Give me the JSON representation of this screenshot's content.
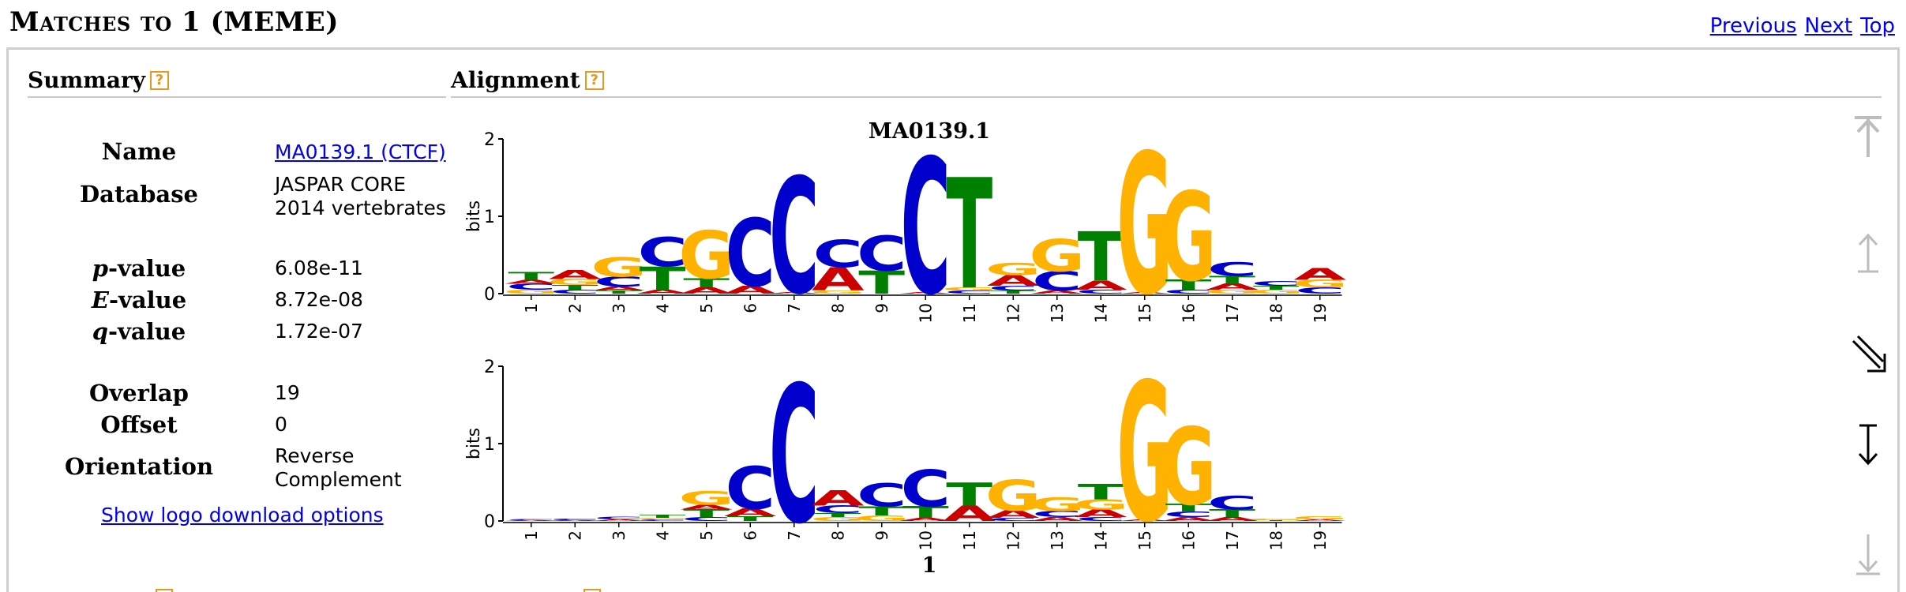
{
  "header": {
    "title": "Matches to 1 (MEME)",
    "nav": {
      "previous": "Previous",
      "next": "Next",
      "top": "Top"
    }
  },
  "summary": {
    "heading": "Summary",
    "help": "?",
    "name_label": "Name",
    "name_value": "MA0139.1 (CTCF)",
    "database_label": "Database",
    "database_line1": "JASPAR CORE",
    "database_line2": "2014 vertebrates",
    "pvalue_label_italic": "p",
    "pvalue_label_rest": "-value",
    "pvalue": "6.08e-11",
    "evalue_label_italic": "E",
    "evalue_label_rest": "-value",
    "evalue": "8.72e-08",
    "qvalue_label_italic": "q",
    "qvalue_label_rest": "-value",
    "qvalue": "1.72e-07",
    "overlap_label": "Overlap",
    "overlap": "19",
    "offset_label": "Offset",
    "offset": "0",
    "orientation_label": "Orientation",
    "orientation_line1": "Reverse",
    "orientation_line2": "Complement",
    "download_link": "Show logo download options"
  },
  "alignment": {
    "heading": "Alignment",
    "help": "?",
    "top_logo_title": "MA0139.1",
    "bottom_logo_title": "1",
    "y_axis_label": "bits",
    "y_ticks": [
      "0",
      "1",
      "2"
    ],
    "positions": [
      "1",
      "2",
      "3",
      "4",
      "5",
      "6",
      "7",
      "8",
      "9",
      "10",
      "11",
      "12",
      "13",
      "14",
      "15",
      "16",
      "17",
      "18",
      "19"
    ]
  },
  "colors": {
    "A": "#cc0000",
    "C": "#0000cc",
    "G": "#ffb300",
    "T": "#008000",
    "link": "#0000ee",
    "help": "#e39a22"
  },
  "logos": {
    "top": [
      [
        [
          "G",
          0.05
        ],
        [
          "C",
          0.08
        ],
        [
          "A",
          0.05
        ],
        [
          "T",
          0.1
        ]
      ],
      [
        [
          "C",
          0.05
        ],
        [
          "T",
          0.06
        ],
        [
          "G",
          0.08
        ],
        [
          "A",
          0.12
        ]
      ],
      [
        [
          "T",
          0.04
        ],
        [
          "A",
          0.05
        ],
        [
          "C",
          0.13
        ],
        [
          "G",
          0.25
        ]
      ],
      [
        [
          "A",
          0.05
        ],
        [
          "T",
          0.3
        ],
        [
          "C",
          0.38
        ]
      ],
      [
        [
          "A",
          0.08
        ],
        [
          "T",
          0.12
        ],
        [
          "G",
          0.62
        ]
      ],
      [
        [
          "A",
          0.1
        ],
        [
          "C",
          0.88
        ]
      ],
      [
        [
          "A",
          0.02
        ],
        [
          "C",
          1.5
        ]
      ],
      [
        [
          "G",
          0.04
        ],
        [
          "A",
          0.3
        ],
        [
          "C",
          0.35
        ]
      ],
      [
        [
          "T",
          0.3
        ],
        [
          "C",
          0.45
        ]
      ],
      [
        [
          "A",
          0.02
        ],
        [
          "C",
          1.75
        ]
      ],
      [
        [
          "C",
          0.04
        ],
        [
          "G",
          0.04
        ],
        [
          "T",
          1.43
        ]
      ],
      [
        [
          "T",
          0.04
        ],
        [
          "C",
          0.06
        ],
        [
          "A",
          0.14
        ],
        [
          "G",
          0.16
        ]
      ],
      [
        [
          "A",
          0.04
        ],
        [
          "C",
          0.25
        ],
        [
          "G",
          0.42
        ]
      ],
      [
        [
          "C",
          0.05
        ],
        [
          "A",
          0.12
        ],
        [
          "T",
          0.64
        ]
      ],
      [
        [
          "A",
          0.02
        ],
        [
          "G",
          1.82
        ]
      ],
      [
        [
          "C",
          0.05
        ],
        [
          "T",
          0.13
        ],
        [
          "G",
          1.15
        ]
      ],
      [
        [
          "G",
          0.05
        ],
        [
          "A",
          0.08
        ],
        [
          "T",
          0.1
        ],
        [
          "C",
          0.18
        ]
      ],
      [
        [
          "G",
          0.05
        ],
        [
          "T",
          0.05
        ],
        [
          "C",
          0.06
        ]
      ],
      [
        [
          "C",
          0.08
        ],
        [
          "G",
          0.1
        ],
        [
          "A",
          0.15
        ]
      ]
    ],
    "bottom": [
      [
        [
          "A",
          0.01
        ],
        [
          "C",
          0.01
        ]
      ],
      [
        [
          "A",
          0.01
        ],
        [
          "C",
          0.02
        ]
      ],
      [
        [
          "A",
          0.02
        ],
        [
          "C",
          0.03
        ]
      ],
      [
        [
          "C",
          0.02
        ],
        [
          "G",
          0.02
        ],
        [
          "T",
          0.04
        ]
      ],
      [
        [
          "C",
          0.05
        ],
        [
          "T",
          0.1
        ],
        [
          "A",
          0.06
        ],
        [
          "G",
          0.18
        ]
      ],
      [
        [
          "T",
          0.06
        ],
        [
          "A",
          0.1
        ],
        [
          "C",
          0.55
        ]
      ],
      [
        [
          "C",
          1.78
        ]
      ],
      [
        [
          "G",
          0.05
        ],
        [
          "T",
          0.05
        ],
        [
          "C",
          0.1
        ],
        [
          "A",
          0.2
        ]
      ],
      [
        [
          "G",
          0.07
        ],
        [
          "T",
          0.12
        ],
        [
          "C",
          0.3
        ]
      ],
      [
        [
          "A",
          0.04
        ],
        [
          "T",
          0.15
        ],
        [
          "C",
          0.48
        ]
      ],
      [
        [
          "A",
          0.2
        ],
        [
          "T",
          0.3
        ]
      ],
      [
        [
          "C",
          0.04
        ],
        [
          "A",
          0.1
        ],
        [
          "G",
          0.4
        ]
      ],
      [
        [
          "A",
          0.05
        ],
        [
          "C",
          0.08
        ],
        [
          "G",
          0.18
        ]
      ],
      [
        [
          "C",
          0.05
        ],
        [
          "A",
          0.1
        ],
        [
          "G",
          0.13
        ],
        [
          "T",
          0.2
        ]
      ],
      [
        [
          "A",
          0.02
        ],
        [
          "G",
          1.8
        ]
      ],
      [
        [
          "A",
          0.05
        ],
        [
          "C",
          0.07
        ],
        [
          "T",
          0.1
        ],
        [
          "G",
          1.0
        ]
      ],
      [
        [
          "A",
          0.05
        ],
        [
          "T",
          0.1
        ],
        [
          "C",
          0.18
        ]
      ],
      [
        [
          "T",
          0.01
        ],
        [
          "G",
          0.02
        ]
      ],
      [
        [
          "A",
          0.02
        ],
        [
          "G",
          0.04
        ]
      ]
    ]
  },
  "controls": [
    "shift-to-start",
    "shift-up",
    "reverse-complement",
    "shift-to-end",
    "shift-down"
  ]
}
